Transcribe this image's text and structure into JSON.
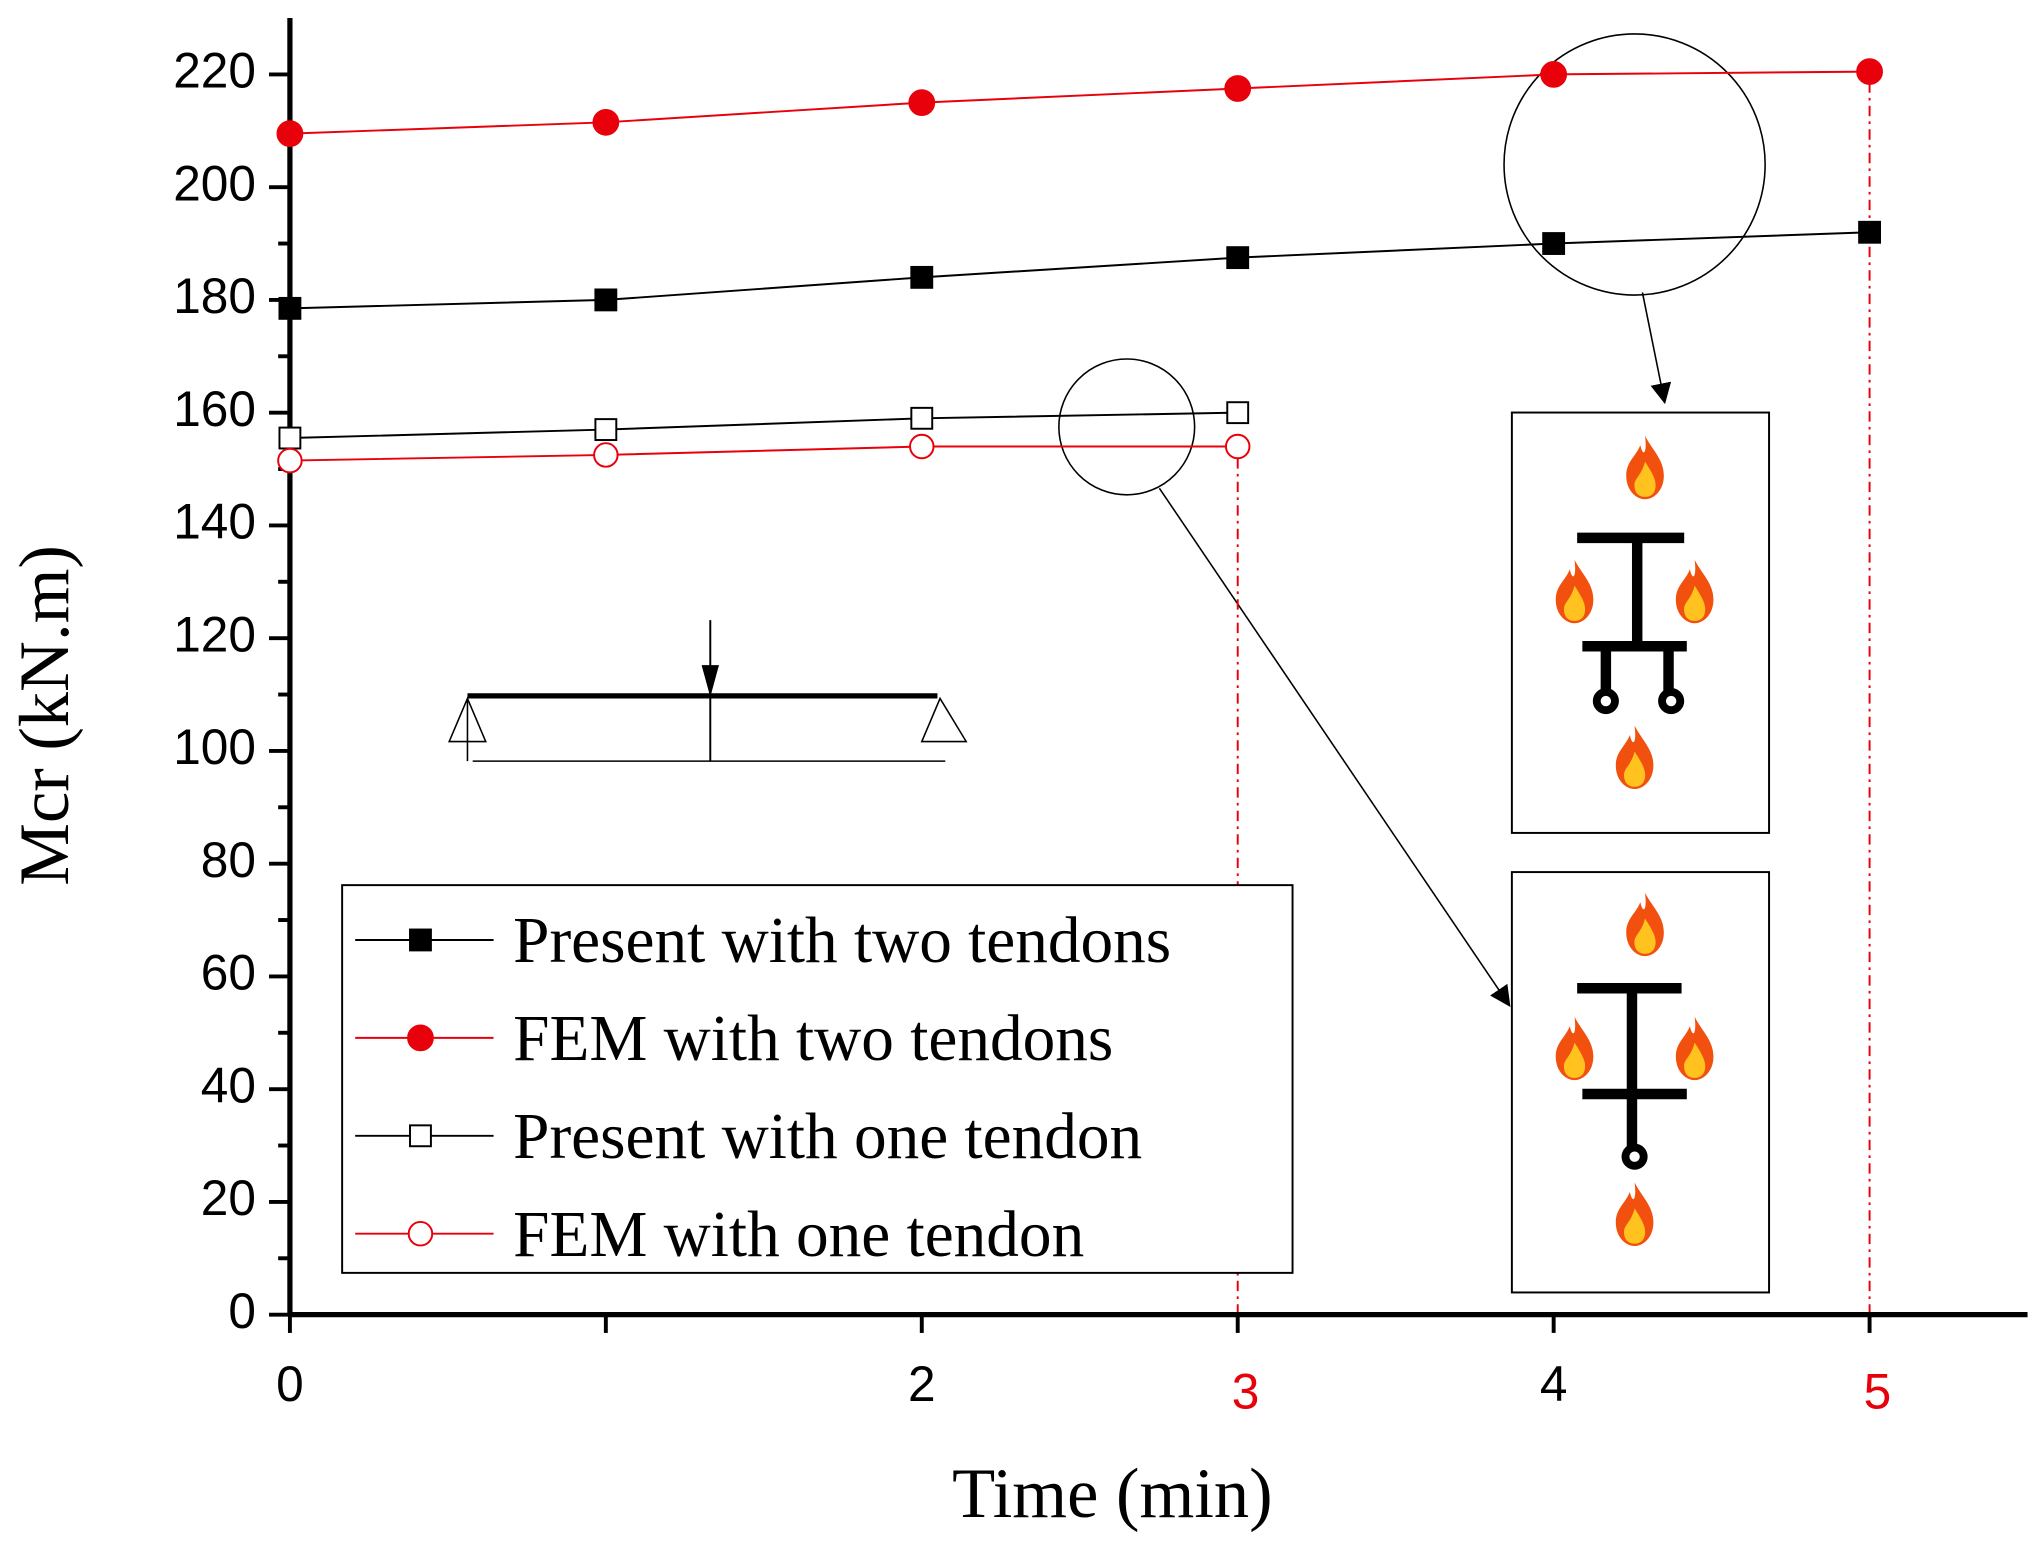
{
  "chart_data": {
    "type": "line",
    "xlabel": "Time (min)",
    "ylabel": "Mcr (kN.m)",
    "xlim": [
      0,
      5.5
    ],
    "ylim": [
      0,
      230
    ],
    "xticks": [
      0,
      {
        "value": 1,
        "label": null
      },
      2,
      3,
      4,
      5
    ],
    "yticks": [
      0,
      20,
      40,
      60,
      80,
      100,
      120,
      140,
      160,
      180,
      200,
      220
    ],
    "y_minor_step": 10,
    "highlight_x": [
      3,
      5
    ],
    "highlight_color": "#e8000b",
    "legend": "lower left",
    "series": [
      {
        "name": "Present with two tendons",
        "color": "#000000",
        "marker": "square",
        "filled": true,
        "x": [
          0,
          1,
          2,
          3,
          4,
          5
        ],
        "values": [
          178.5,
          180,
          184,
          187.5,
          190,
          192
        ]
      },
      {
        "name": "FEM with two tendons",
        "color": "#e8000b",
        "marker": "circle",
        "filled": true,
        "x": [
          0,
          1,
          2,
          3,
          4,
          5
        ],
        "values": [
          209.5,
          211.5,
          215,
          217.5,
          220,
          220.5
        ]
      },
      {
        "name": "Present with one tendon",
        "color": "#000000",
        "marker": "square",
        "filled": false,
        "x": [
          0,
          1,
          2,
          3
        ],
        "values": [
          155.5,
          157,
          159,
          160
        ]
      },
      {
        "name": "FEM with one tendon",
        "color": "#e8000b",
        "marker": "circle",
        "filled": false,
        "x": [
          0,
          1,
          2,
          3
        ],
        "values": [
          151.5,
          152.5,
          154,
          154
        ]
      }
    ]
  }
}
